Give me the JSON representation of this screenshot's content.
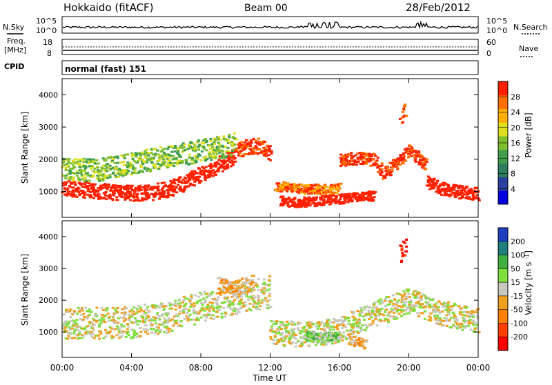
{
  "header": {
    "station": "Hokkaido (fitACF)",
    "beam": "Beam 00",
    "date": "28/Feb/2012"
  },
  "top_panels": {
    "nsky_label": "N.Sky",
    "nsearch_label": "N.Search",
    "noise_ticks_left": [
      "10^5",
      "10^0"
    ],
    "noise_ticks_right": [
      "10^5",
      "10^0"
    ],
    "freq_label_1": "Freq.",
    "freq_label_2": "[MHz]",
    "freq_ticks": [
      "18",
      "8"
    ],
    "nave_label": "Nave",
    "nave_ticks": [
      "60",
      "0"
    ],
    "cpid_label": "CPID",
    "cpid_value": "normal (fast) 151"
  },
  "colors": {
    "power": [
      "#0000e0",
      "#2a3f9e",
      "#2f7f5f",
      "#3f9f4f",
      "#7fbf2f",
      "#dfdf1f",
      "#ffaf00",
      "#ff6f00",
      "#ff2000"
    ],
    "velocity": [
      "#1f3fbf",
      "#1f7f7f",
      "#3faf3f",
      "#7fdf3f",
      "#c8c8c0",
      "#f0a020",
      "#ff7f00",
      "#ff4000",
      "#ff0000"
    ],
    "noise_line": "#000000"
  },
  "chart_data": [
    {
      "type": "heatmap",
      "title": "",
      "xlabel": "Time UT",
      "ylabel": "Slant Range [km]",
      "xlim": [
        "00:00",
        "24:00"
      ],
      "ylim": [
        200,
        4500
      ],
      "x_ticks": [
        "00:00",
        "04:00",
        "08:00",
        "12:00",
        "16:00",
        "20:00",
        "00:00"
      ],
      "y_ticks": [
        1000,
        2000,
        3000,
        4000
      ],
      "colorbar_label": "Power [dB]",
      "colorbar_ticks": [
        4,
        8,
        12,
        16,
        20,
        24,
        28
      ],
      "scatter_bands": [
        {
          "t": [
            0,
            1,
            2,
            3,
            4,
            5,
            6,
            7,
            8,
            9,
            10
          ],
          "r": [
            1150,
            1100,
            1050,
            1000,
            980,
            1000,
            1080,
            1300,
            1600,
            1850,
            2150
          ],
          "width": 250,
          "level": 9
        },
        {
          "t": [
            0,
            2,
            4,
            6,
            8,
            10
          ],
          "r": [
            1700,
            1700,
            1900,
            2100,
            2300,
            2500
          ],
          "width": 350,
          "level": 4
        },
        {
          "t": [
            10,
            10.5,
            11,
            11.5,
            12
          ],
          "r": [
            2300,
            2400,
            2450,
            2400,
            2200
          ],
          "width": 250,
          "level": 8
        },
        {
          "t": [
            12.5,
            13,
            14,
            15,
            16,
            17,
            18
          ],
          "r": [
            750,
            700,
            700,
            750,
            800,
            850,
            900
          ],
          "width": 150,
          "level": 9
        },
        {
          "t": [
            12.3,
            13,
            14,
            15,
            16
          ],
          "r": [
            1200,
            1150,
            1100,
            1100,
            1150
          ],
          "width": 150,
          "level": 7
        },
        {
          "t": [
            16,
            17,
            18,
            18.5,
            19,
            20,
            21
          ],
          "r": [
            2000,
            2050,
            2000,
            1600,
            1800,
            2300,
            1800
          ],
          "width": 200,
          "level": 8
        },
        {
          "t": [
            21,
            22,
            23,
            24
          ],
          "r": [
            1300,
            1100,
            1000,
            950
          ],
          "width": 200,
          "level": 9
        },
        {
          "t": [
            19.5,
            19.8
          ],
          "r": [
            3400,
            3600
          ],
          "width": 250,
          "level": 8
        }
      ]
    },
    {
      "type": "heatmap",
      "title": "",
      "xlabel": "Time UT",
      "ylabel": "Slant Range [km]",
      "xlim": [
        "00:00",
        "24:00"
      ],
      "ylim": [
        200,
        4500
      ],
      "x_ticks": [
        "00:00",
        "04:00",
        "08:00",
        "12:00",
        "16:00",
        "20:00",
        "00:00"
      ],
      "y_ticks": [
        1000,
        2000,
        3000,
        4000
      ],
      "colorbar_label": "Velocity [m s^-1]",
      "colorbar_ticks": [
        200,
        100,
        50,
        15,
        -15,
        -50,
        -100,
        -200
      ],
      "scatter_bands": [
        {
          "t": [
            0,
            2,
            4,
            6,
            8,
            10,
            12
          ],
          "r": [
            1300,
            1300,
            1350,
            1500,
            1800,
            2100,
            2300
          ],
          "width": 500,
          "level": 4
        },
        {
          "t": [
            12,
            14,
            16,
            18,
            20,
            22,
            24
          ],
          "r": [
            1000,
            950,
            1100,
            1600,
            2000,
            1600,
            1400
          ],
          "width": 400,
          "level": 4
        },
        {
          "t": [
            14,
            15,
            16
          ],
          "r": [
            900,
            850,
            900
          ],
          "width": 150,
          "level": 3
        },
        {
          "t": [
            16.5,
            17,
            17.5
          ],
          "r": [
            800,
            700,
            650
          ],
          "width": 150,
          "level": 5
        },
        {
          "t": [
            19.5,
            19.8
          ],
          "r": [
            3500,
            3700
          ],
          "width": 300,
          "level": 8
        },
        {
          "t": [
            9,
            10,
            11
          ],
          "r": [
            2500,
            2400,
            2600
          ],
          "width": 250,
          "level": 5
        }
      ]
    }
  ]
}
